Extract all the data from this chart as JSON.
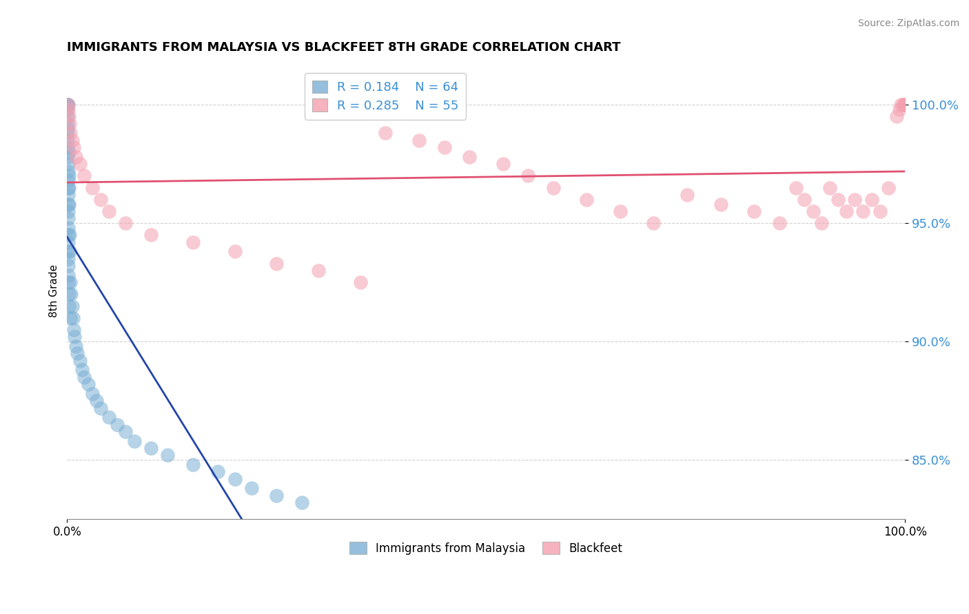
{
  "title": "IMMIGRANTS FROM MALAYSIA VS BLACKFEET 8TH GRADE CORRELATION CHART",
  "source": "Source: ZipAtlas.com",
  "ylabel": "8th Grade",
  "xlim": [
    0.0,
    100.0
  ],
  "ylim": [
    82.5,
    101.8
  ],
  "yticks": [
    85.0,
    90.0,
    95.0,
    100.0
  ],
  "blue_R": 0.184,
  "blue_N": 64,
  "pink_R": 0.285,
  "pink_N": 55,
  "blue_color": "#7BAFD4",
  "pink_color": "#F4A0B0",
  "blue_line_color": "#2244AA",
  "pink_line_color": "#E05070",
  "legend_label_blue": "Immigrants from Malaysia",
  "legend_label_pink": "Blackfeet",
  "blue_x": [
    0.05,
    0.05,
    0.05,
    0.06,
    0.06,
    0.07,
    0.07,
    0.08,
    0.08,
    0.08,
    0.09,
    0.09,
    0.1,
    0.1,
    0.1,
    0.11,
    0.11,
    0.12,
    0.12,
    0.13,
    0.13,
    0.14,
    0.14,
    0.15,
    0.15,
    0.16,
    0.16,
    0.17,
    0.18,
    0.19,
    0.2,
    0.2,
    0.22,
    0.25,
    0.28,
    0.3,
    0.35,
    0.4,
    0.5,
    0.6,
    0.7,
    0.8,
    0.9,
    1.0,
    1.2,
    1.5,
    1.8,
    2.0,
    2.5,
    3.0,
    3.5,
    4.0,
    5.0,
    6.0,
    7.0,
    8.0,
    10.0,
    12.0,
    15.0,
    18.0,
    20.0,
    22.0,
    25.0,
    28.0
  ],
  "blue_y": [
    100.0,
    100.0,
    100.0,
    100.0,
    99.8,
    99.5,
    99.2,
    99.0,
    98.8,
    98.5,
    98.2,
    97.8,
    97.5,
    97.2,
    96.8,
    96.5,
    96.2,
    95.8,
    95.5,
    95.2,
    94.8,
    94.5,
    94.2,
    93.8,
    93.5,
    93.2,
    92.8,
    92.5,
    92.0,
    91.5,
    98.0,
    97.0,
    96.5,
    95.8,
    94.5,
    93.8,
    92.5,
    91.0,
    92.0,
    91.5,
    91.0,
    90.5,
    90.2,
    89.8,
    89.5,
    89.2,
    88.8,
    88.5,
    88.2,
    87.8,
    87.5,
    87.2,
    86.8,
    86.5,
    86.2,
    85.8,
    85.5,
    85.2,
    84.8,
    84.5,
    84.2,
    83.8,
    83.5,
    83.2
  ],
  "pink_x": [
    0.1,
    0.15,
    0.2,
    0.3,
    0.4,
    0.6,
    0.8,
    1.0,
    1.5,
    2.0,
    3.0,
    4.0,
    5.0,
    7.0,
    10.0,
    15.0,
    20.0,
    25.0,
    30.0,
    35.0,
    38.0,
    42.0,
    45.0,
    48.0,
    52.0,
    55.0,
    58.0,
    62.0,
    66.0,
    70.0,
    74.0,
    78.0,
    82.0,
    85.0,
    87.0,
    88.0,
    89.0,
    90.0,
    91.0,
    92.0,
    93.0,
    94.0,
    95.0,
    96.0,
    97.0,
    98.0,
    99.0,
    99.3,
    99.5,
    99.7,
    100.0,
    100.0,
    100.0,
    100.0,
    100.0
  ],
  "pink_y": [
    100.0,
    99.8,
    99.5,
    99.2,
    98.8,
    98.5,
    98.2,
    97.8,
    97.5,
    97.0,
    96.5,
    96.0,
    95.5,
    95.0,
    94.5,
    94.2,
    93.8,
    93.3,
    93.0,
    92.5,
    98.8,
    98.5,
    98.2,
    97.8,
    97.5,
    97.0,
    96.5,
    96.0,
    95.5,
    95.0,
    96.2,
    95.8,
    95.5,
    95.0,
    96.5,
    96.0,
    95.5,
    95.0,
    96.5,
    96.0,
    95.5,
    96.0,
    95.5,
    96.0,
    95.5,
    96.5,
    99.5,
    99.8,
    100.0,
    100.0,
    100.0,
    100.0,
    100.0,
    100.0,
    100.0
  ]
}
